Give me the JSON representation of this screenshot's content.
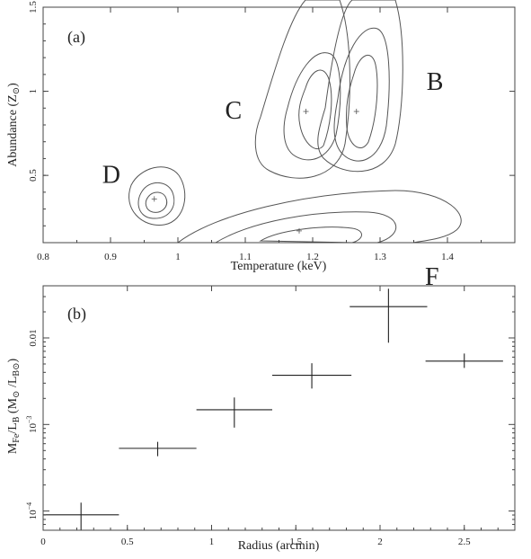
{
  "chart_data": [
    {
      "panel": "(a)",
      "type": "contour",
      "xlabel": "Temperature (keV)",
      "ylabel_main": "Abundance (Z",
      "ylabel_sub": "⊙",
      "ylabel_end": ")",
      "xlim": [
        0.8,
        1.5
      ],
      "ylim": [
        0.1,
        1.5
      ],
      "xticks": [
        "0.8",
        "0.9",
        "1",
        "1.1",
        "1.2",
        "1.3",
        "1.4"
      ],
      "yticks": [
        "0.5",
        "1",
        "1.5"
      ],
      "regions": [
        {
          "label": "D",
          "best_fit": [
            0.965,
            0.36
          ]
        },
        {
          "label": "C",
          "best_fit": [
            1.19,
            0.88
          ]
        },
        {
          "label": "B",
          "best_fit": [
            1.265,
            0.88
          ]
        },
        {
          "label": "F",
          "best_fit": [
            1.18,
            0.17
          ]
        }
      ]
    },
    {
      "panel": "(b)",
      "type": "errorbar",
      "yscale": "log",
      "xlabel": "Radius (arcmin)",
      "ylabel_text": "M",
      "ylabel_fe": "Fe",
      "ylabel_slash": "/L",
      "ylabel_b": "B",
      "ylabel_units_open": " (M",
      "ylabel_sun1": "⊙",
      "ylabel_mid": " /L",
      "ylabel_bsun": "B⊙",
      "ylabel_units_close": ")",
      "xlim": [
        0,
        2.8
      ],
      "ylim": [
        6e-05,
        0.04
      ],
      "xticks": [
        "0",
        "0.5",
        "1",
        "1.5",
        "2",
        "2.5"
      ],
      "yticks": [
        {
          "base": "10",
          "exp": "−4",
          "value": 0.0001
        },
        {
          "base": "10",
          "exp": "−3",
          "value": 0.001
        },
        {
          "base": "0.01",
          "exp": "",
          "value": 0.01
        }
      ],
      "points": [
        {
          "x": 0.225,
          "xerr": 0.225,
          "y": 9.05e-05,
          "ylo": 6e-05,
          "yhi": 0.000125
        },
        {
          "x": 0.68,
          "xerr": 0.23,
          "y": 0.00053,
          "ylo": 0.00043,
          "yhi": 0.00063
        },
        {
          "x": 1.135,
          "xerr": 0.225,
          "y": 0.00148,
          "ylo": 0.00092,
          "yhi": 0.00205
        },
        {
          "x": 1.595,
          "xerr": 0.235,
          "y": 0.0037,
          "ylo": 0.0026,
          "yhi": 0.0051
        },
        {
          "x": 2.05,
          "xerr": 0.23,
          "y": 0.023,
          "ylo": 0.0088,
          "yhi": 0.037
        },
        {
          "x": 2.5,
          "xerr": 0.23,
          "y": 0.0054,
          "ylo": 0.0045,
          "yhi": 0.0066
        }
      ]
    }
  ]
}
